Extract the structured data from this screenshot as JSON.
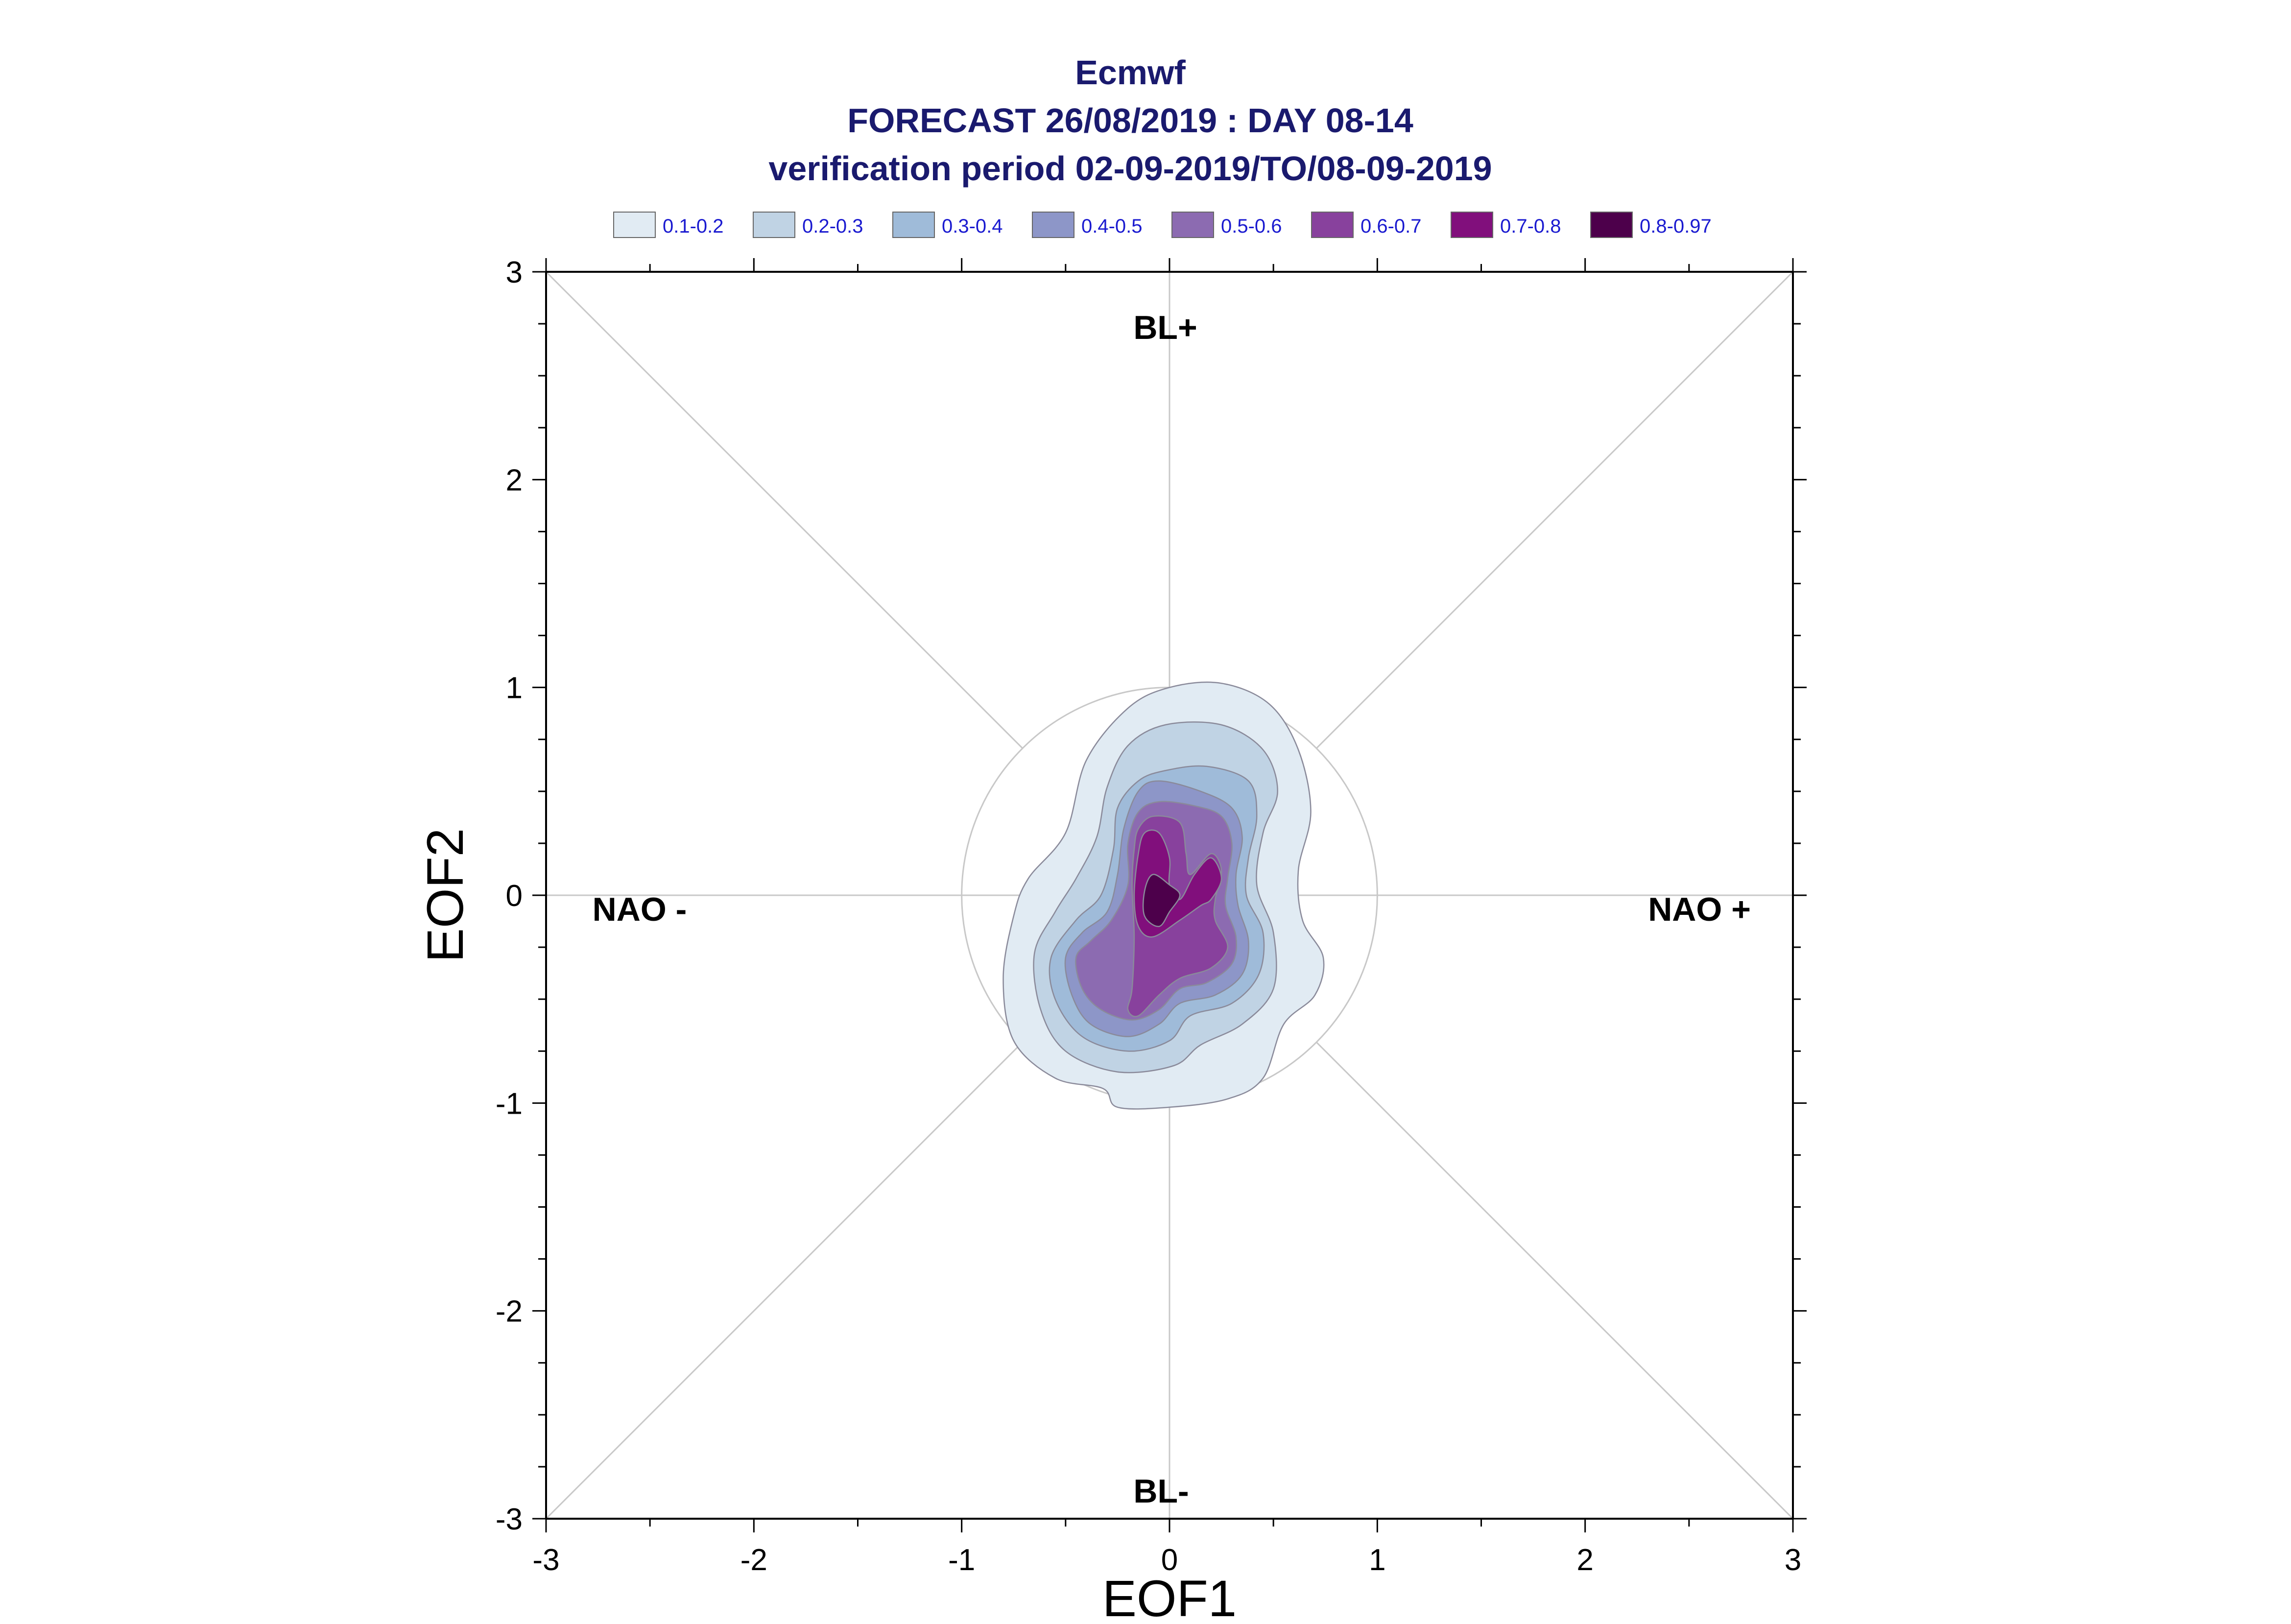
{
  "chart_data": {
    "type": "contour",
    "title": [
      "Ecmwf",
      "FORECAST 26/08/2019 : DAY 08-14",
      "verification period 02-09-2019/TO/08-09-2019"
    ],
    "xlabel": "EOF1",
    "ylabel": "EOF2",
    "xlim": [
      -3,
      3
    ],
    "ylim": [
      -3,
      3
    ],
    "xticks": [
      -3,
      -2,
      -1,
      0,
      1,
      2,
      3
    ],
    "yticks": [
      -3,
      -2,
      -1,
      0,
      1,
      2,
      3
    ],
    "grid": false,
    "legend_position": "top",
    "legend": [
      {
        "label": "0.1-0.2",
        "color": "#e1ebf3"
      },
      {
        "label": "0.2-0.3",
        "color": "#c0d3e4"
      },
      {
        "label": "0.3-0.4",
        "color": "#9fbbd9"
      },
      {
        "label": "0.4-0.5",
        "color": "#8d96c8"
      },
      {
        "label": "0.5-0.6",
        "color": "#8c6bb1"
      },
      {
        "label": "0.6-0.7",
        "color": "#88419d"
      },
      {
        "label": "0.7-0.8",
        "color": "#810f7c"
      },
      {
        "label": "0.8-0.97",
        "color": "#4d004b"
      }
    ],
    "regime_labels": [
      {
        "text": "BL+",
        "x": -0.02,
        "y": 2.72
      },
      {
        "text": "BL-",
        "x": -0.04,
        "y": -2.88
      },
      {
        "text": "NAO -",
        "x": -2.55,
        "y": -0.08
      },
      {
        "text": "NAO +",
        "x": 2.55,
        "y": -0.08
      }
    ],
    "reference_circle_radius": 1,
    "contours": [
      {
        "level": "0.1-0.2",
        "points": [
          [
            0.0,
            1.0
          ],
          [
            0.25,
            1.02
          ],
          [
            0.48,
            0.92
          ],
          [
            0.62,
            0.7
          ],
          [
            0.68,
            0.4
          ],
          [
            0.62,
            0.12
          ],
          [
            0.64,
            -0.12
          ],
          [
            0.74,
            -0.3
          ],
          [
            0.7,
            -0.48
          ],
          [
            0.55,
            -0.62
          ],
          [
            0.45,
            -0.88
          ],
          [
            0.28,
            -0.98
          ],
          [
            0.0,
            -1.02
          ],
          [
            -0.25,
            -1.02
          ],
          [
            -0.32,
            -0.93
          ],
          [
            -0.55,
            -0.88
          ],
          [
            -0.75,
            -0.7
          ],
          [
            -0.8,
            -0.4
          ],
          [
            -0.75,
            -0.1
          ],
          [
            -0.68,
            0.08
          ],
          [
            -0.5,
            0.3
          ],
          [
            -0.4,
            0.65
          ],
          [
            -0.2,
            0.9
          ]
        ]
      },
      {
        "level": "0.2-0.3",
        "points": [
          [
            -0.02,
            0.82
          ],
          [
            0.25,
            0.82
          ],
          [
            0.45,
            0.7
          ],
          [
            0.52,
            0.5
          ],
          [
            0.45,
            0.3
          ],
          [
            0.42,
            0.05
          ],
          [
            0.5,
            -0.18
          ],
          [
            0.5,
            -0.45
          ],
          [
            0.35,
            -0.62
          ],
          [
            0.15,
            -0.72
          ],
          [
            0.02,
            -0.82
          ],
          [
            -0.25,
            -0.85
          ],
          [
            -0.5,
            -0.75
          ],
          [
            -0.62,
            -0.55
          ],
          [
            -0.65,
            -0.28
          ],
          [
            -0.55,
            -0.08
          ],
          [
            -0.45,
            0.08
          ],
          [
            -0.35,
            0.28
          ],
          [
            -0.3,
            0.52
          ],
          [
            -0.2,
            0.72
          ]
        ]
      },
      {
        "level": "0.3-0.4",
        "points": [
          [
            -0.02,
            0.6
          ],
          [
            0.18,
            0.62
          ],
          [
            0.38,
            0.55
          ],
          [
            0.42,
            0.38
          ],
          [
            0.38,
            0.18
          ],
          [
            0.37,
            0.0
          ],
          [
            0.45,
            -0.18
          ],
          [
            0.43,
            -0.38
          ],
          [
            0.3,
            -0.52
          ],
          [
            0.1,
            -0.58
          ],
          [
            0.0,
            -0.7
          ],
          [
            -0.2,
            -0.75
          ],
          [
            -0.42,
            -0.68
          ],
          [
            -0.55,
            -0.5
          ],
          [
            -0.57,
            -0.3
          ],
          [
            -0.45,
            -0.12
          ],
          [
            -0.33,
            0.0
          ],
          [
            -0.27,
            0.22
          ],
          [
            -0.25,
            0.42
          ],
          [
            -0.15,
            0.55
          ]
        ]
      },
      {
        "level": "0.4-0.5",
        "points": [
          [
            -0.05,
            0.55
          ],
          [
            0.15,
            0.5
          ],
          [
            0.3,
            0.42
          ],
          [
            0.35,
            0.28
          ],
          [
            0.32,
            0.1
          ],
          [
            0.33,
            -0.05
          ],
          [
            0.38,
            -0.22
          ],
          [
            0.35,
            -0.38
          ],
          [
            0.22,
            -0.48
          ],
          [
            0.05,
            -0.52
          ],
          [
            -0.05,
            -0.62
          ],
          [
            -0.2,
            -0.68
          ],
          [
            -0.38,
            -0.62
          ],
          [
            -0.47,
            -0.48
          ],
          [
            -0.5,
            -0.3
          ],
          [
            -0.42,
            -0.18
          ],
          [
            -0.3,
            -0.08
          ],
          [
            -0.25,
            0.1
          ],
          [
            -0.22,
            0.32
          ],
          [
            -0.15,
            0.5
          ]
        ]
      },
      {
        "level": "0.5-0.6",
        "points": [
          [
            -0.05,
            0.45
          ],
          [
            0.12,
            0.43
          ],
          [
            0.25,
            0.38
          ],
          [
            0.3,
            0.25
          ],
          [
            0.28,
            0.08
          ],
          [
            0.27,
            -0.05
          ],
          [
            0.32,
            -0.2
          ],
          [
            0.3,
            -0.33
          ],
          [
            0.18,
            -0.42
          ],
          [
            0.05,
            -0.45
          ],
          [
            -0.05,
            -0.55
          ],
          [
            -0.18,
            -0.6
          ],
          [
            -0.33,
            -0.55
          ],
          [
            -0.42,
            -0.45
          ],
          [
            -0.45,
            -0.3
          ],
          [
            -0.38,
            -0.22
          ],
          [
            -0.28,
            -0.12
          ],
          [
            -0.2,
            0.05
          ],
          [
            -0.2,
            0.25
          ],
          [
            -0.15,
            0.4
          ]
        ]
      },
      {
        "level": "0.6-0.7",
        "points": [
          [
            -0.08,
            0.38
          ],
          [
            0.05,
            0.35
          ],
          [
            0.08,
            0.2
          ],
          [
            0.1,
            0.1
          ],
          [
            0.2,
            0.2
          ],
          [
            0.25,
            0.12
          ],
          [
            0.22,
            -0.02
          ],
          [
            0.22,
            -0.12
          ],
          [
            0.28,
            -0.25
          ],
          [
            0.2,
            -0.35
          ],
          [
            0.05,
            -0.4
          ],
          [
            -0.05,
            -0.48
          ],
          [
            -0.15,
            -0.58
          ],
          [
            -0.2,
            -0.55
          ],
          [
            -0.18,
            -0.45
          ],
          [
            -0.17,
            -0.2
          ],
          [
            -0.18,
            0.05
          ],
          [
            -0.17,
            0.22
          ],
          [
            -0.15,
            0.32
          ]
        ]
      },
      {
        "level": "0.7-0.8",
        "points": [
          [
            -0.12,
            0.3
          ],
          [
            -0.05,
            0.3
          ],
          [
            0.0,
            0.18
          ],
          [
            0.0,
            0.05
          ],
          [
            0.05,
            -0.02
          ],
          [
            0.12,
            0.1
          ],
          [
            0.2,
            0.18
          ],
          [
            0.25,
            0.08
          ],
          [
            0.2,
            -0.02
          ],
          [
            0.15,
            -0.05
          ],
          [
            0.05,
            -0.12
          ],
          [
            -0.08,
            -0.2
          ],
          [
            -0.15,
            -0.15
          ],
          [
            -0.17,
            0.0
          ],
          [
            -0.15,
            0.2
          ]
        ]
      },
      {
        "level": "0.8-0.97",
        "points": [
          [
            -0.08,
            0.1
          ],
          [
            0.0,
            0.05
          ],
          [
            0.05,
            0.0
          ],
          [
            0.0,
            -0.08
          ],
          [
            -0.05,
            -0.15
          ],
          [
            -0.12,
            -0.1
          ],
          [
            -0.12,
            0.02
          ]
        ]
      }
    ]
  }
}
